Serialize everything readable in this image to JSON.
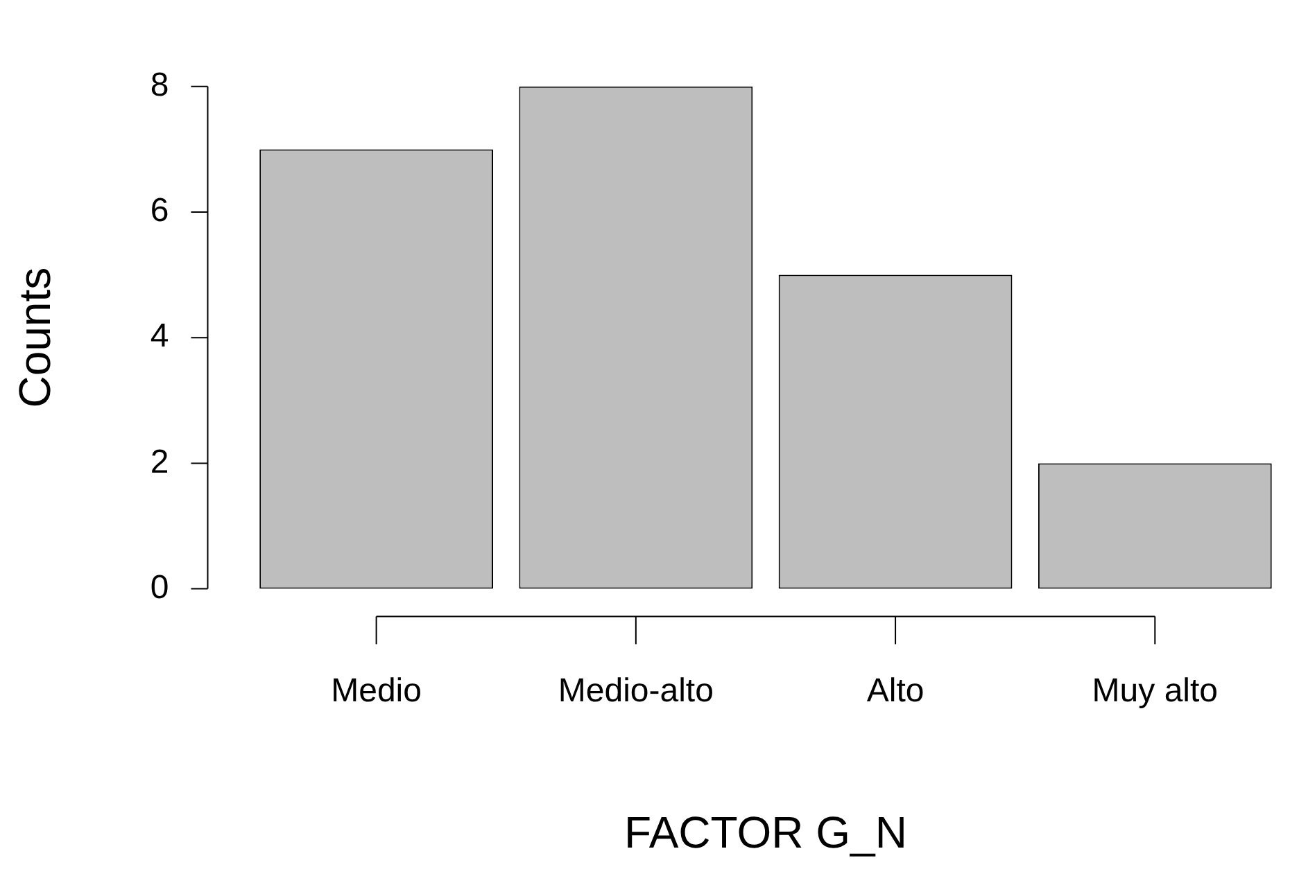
{
  "chart_data": {
    "type": "bar",
    "xlabel": "FACTOR G_N",
    "ylabel": "Counts",
    "categories": [
      "Medio",
      "Medio-alto",
      "Alto",
      "Muy alto"
    ],
    "values": [
      7,
      8,
      5,
      2
    ],
    "color": "#bebebe",
    "ylim": [
      0,
      8
    ],
    "yticks": [
      0,
      2,
      4,
      6,
      8
    ]
  }
}
